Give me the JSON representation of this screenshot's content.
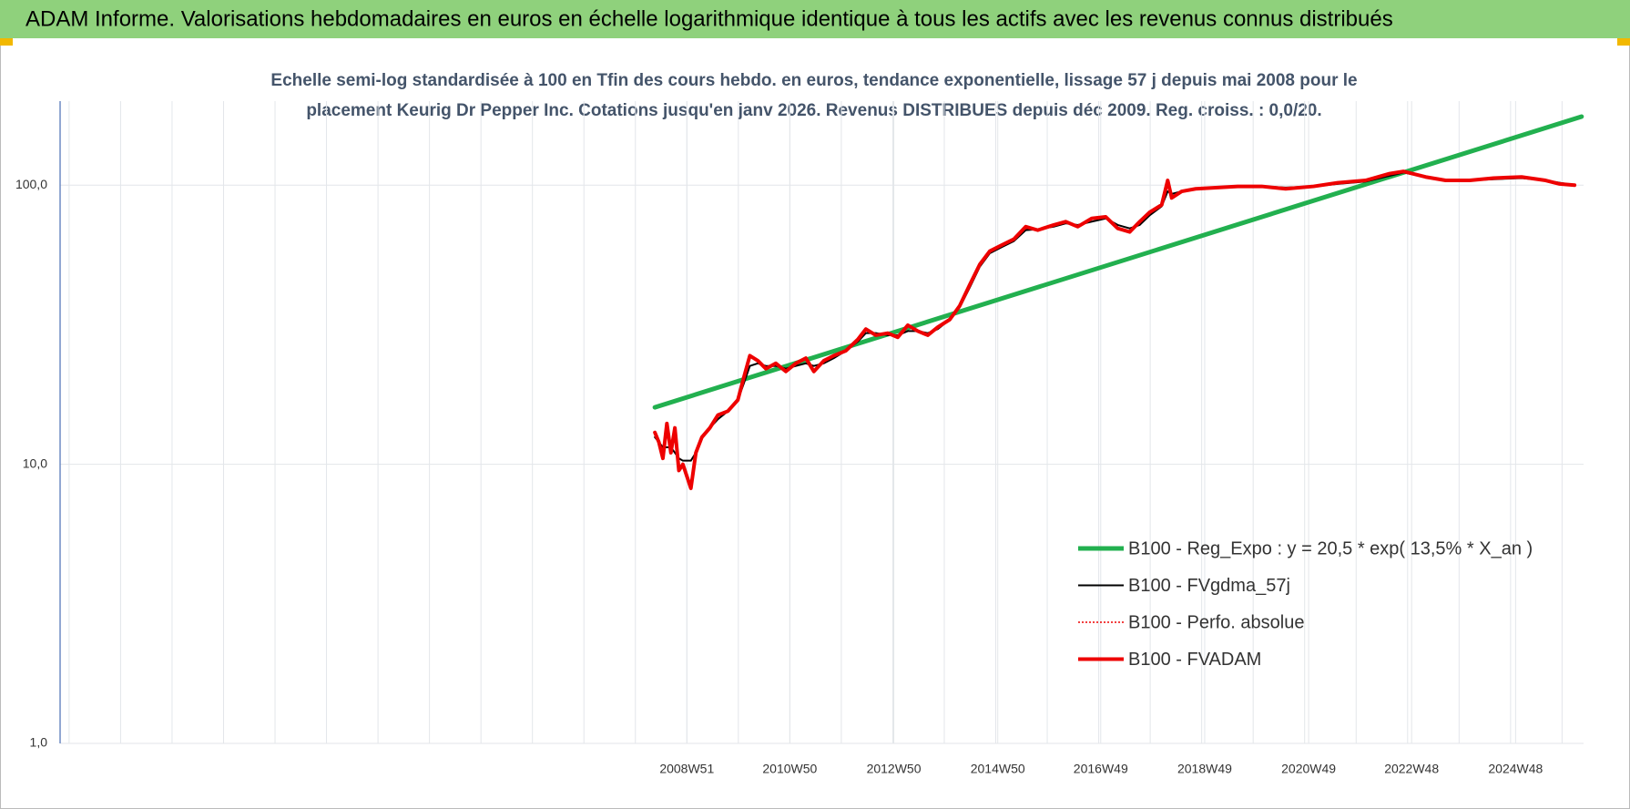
{
  "chart_data": {
    "type": "line",
    "title": "ADAM Informe. Valorisations hebdomadaires en euros en échelle logarithmique identique à tous les actifs avec les revenus connus distribués",
    "subtitle": [
      "Echelle semi-log standardisée à 100 en Tfin des cours hebdo. en euros, tendance exponentielle, lissage 57 j depuis mai 2008 pour le",
      "placement Keurig Dr Pepper Inc. Cotations jusqu'en janv 2026. Revenus DISTRIBUES depuis déc 2009. Reg. croiss. : 0,0/20."
    ],
    "log_scale": true,
    "grid": true,
    "legend": "bottom-right",
    "xlim": [
      "1996W48",
      "2026W12"
    ],
    "xticks": [
      "2008W51",
      "2010W50",
      "2012W50",
      "2014W50",
      "2016W49",
      "2018W49",
      "2020W49",
      "2022W48",
      "2024W48"
    ],
    "ylim": [
      1,
      200
    ],
    "yticks": [
      {
        "value": 1,
        "label": "1,0"
      },
      {
        "value": 10,
        "label": "10,0"
      },
      {
        "value": 100,
        "label": "100,0"
      }
    ],
    "series": [
      {
        "name": "B100 - Reg_Expo : y = 20,5 * exp( 13,5% *  X_an )",
        "color": "#22b04f",
        "width": 5,
        "dash": "none",
        "x": [
          "2008W19",
          "2026W10"
        ],
        "values": [
          16.0,
          176
        ]
      },
      {
        "name": "B100 - FVgdma_57j",
        "color": "#000000",
        "width": 2,
        "dash": "none",
        "x": [
          "2008W19",
          "2008W23",
          "2008W27",
          "2008W31",
          "2008W35",
          "2008W39",
          "2008W43",
          "2008W47",
          "2009W03",
          "2009W08",
          "2009W14",
          "2009W22",
          "2009W30",
          "2009W40",
          "2009W50",
          "2010W04",
          "2010W10",
          "2010W18",
          "2010W26",
          "2010W36",
          "2010W46",
          "2011W04",
          "2011W14",
          "2011W22",
          "2011W32",
          "2011W42",
          "2012W02",
          "2012W14",
          "2012W22",
          "2012W32",
          "2012W44",
          "2013W02",
          "2013W12",
          "2013W22",
          "2013W32",
          "2013W42",
          "2014W02",
          "2014W12",
          "2014W22",
          "2014W32",
          "2014W42",
          "2015W02",
          "2015W14",
          "2015W26",
          "2015W38",
          "2016W02",
          "2016W14",
          "2016W26",
          "2016W40",
          "2017W02",
          "2017W14",
          "2017W26",
          "2017W36",
          "2017W46",
          "2018W06",
          "2018W12",
          "2018W16",
          "2018W26",
          "2018W40",
          "2019W10",
          "2019W30",
          "2020W02",
          "2020W26",
          "2021W02",
          "2021W26",
          "2022W02",
          "2022W26",
          "2022W40",
          "2023W10",
          "2023W30",
          "2024W02",
          "2024W26",
          "2025W02",
          "2025W26",
          "2025W40",
          "2026W03"
        ],
        "values": [
          12.5,
          12,
          11.5,
          11.5,
          11.5,
          11,
          10.5,
          10.3,
          10.3,
          11,
          12.5,
          13.5,
          14.5,
          15.5,
          17,
          19.5,
          22.5,
          23,
          22.5,
          22.5,
          22,
          22.5,
          23,
          22.5,
          23,
          24,
          25.5,
          27.5,
          29.5,
          29.5,
          29,
          29,
          30,
          30,
          29.5,
          30.5,
          33,
          36.5,
          43,
          51,
          57,
          60,
          63,
          69,
          69.5,
          71,
          73,
          72,
          74,
          76,
          72,
          70,
          72,
          78,
          84,
          95,
          93,
          95,
          97,
          98,
          99,
          99,
          98,
          99,
          101,
          103,
          108,
          111,
          107,
          104,
          104,
          105,
          106,
          104,
          102,
          100
        ]
      },
      {
        "name": "B100 - Perfo. absolue",
        "color": "#ee0000",
        "width": 1.5,
        "dash": "2 2",
        "x": [
          "2008W19",
          "2008W23",
          "2008W27",
          "2008W31",
          "2008W35",
          "2008W39",
          "2008W43",
          "2008W47",
          "2009W03",
          "2009W08",
          "2009W14",
          "2009W22",
          "2009W30",
          "2009W40",
          "2009W50",
          "2010W04",
          "2010W10",
          "2010W18",
          "2010W26",
          "2010W36",
          "2010W46",
          "2011W04",
          "2011W14",
          "2011W22",
          "2011W32",
          "2011W42",
          "2012W02",
          "2012W14",
          "2012W22",
          "2012W32",
          "2012W44",
          "2013W02",
          "2013W12",
          "2013W22",
          "2013W32",
          "2013W42",
          "2014W02",
          "2014W12",
          "2014W22",
          "2014W32",
          "2014W42",
          "2015W02",
          "2015W14",
          "2015W26",
          "2015W38",
          "2016W02",
          "2016W14",
          "2016W26",
          "2016W40",
          "2017W02",
          "2017W14",
          "2017W26",
          "2017W36",
          "2017W46",
          "2018W06",
          "2018W12",
          "2018W16",
          "2018W26",
          "2018W40",
          "2019W10",
          "2019W30",
          "2020W02",
          "2020W26",
          "2021W02",
          "2021W26",
          "2022W02",
          "2022W26",
          "2022W40",
          "2023W10",
          "2023W30",
          "2024W02",
          "2024W26",
          "2025W02",
          "2025W26",
          "2025W40",
          "2026W03"
        ],
        "values": [
          13.0,
          12.0,
          10.5,
          14.0,
          11.0,
          13.5,
          9.5,
          10.0,
          8.2,
          11.0,
          12.5,
          13.5,
          15.0,
          15.5,
          17.0,
          20.5,
          24.5,
          23.5,
          22.0,
          23.0,
          21.5,
          23.0,
          24.0,
          21.5,
          23.5,
          24.5,
          25.5,
          28.0,
          30.5,
          29.0,
          29.5,
          28.5,
          31.5,
          30.0,
          29.0,
          31.0,
          33.0,
          37.0,
          44.0,
          52.0,
          58.0,
          61.0,
          64.0,
          71.0,
          69.0,
          72.0,
          74.0,
          71.0,
          76.0,
          77.0,
          70.0,
          68.0,
          74.0,
          80.0,
          85.0,
          104,
          90,
          95,
          97,
          98,
          99,
          99,
          97,
          99,
          102,
          104,
          110,
          112,
          107,
          104,
          104,
          106,
          107,
          104,
          101,
          100
        ]
      },
      {
        "name": "B100 - FVADAM",
        "color": "#ee0000",
        "width": 4,
        "dash": "none",
        "x": [
          "2008W19",
          "2008W23",
          "2008W27",
          "2008W31",
          "2008W35",
          "2008W39",
          "2008W43",
          "2008W47",
          "2009W03",
          "2009W08",
          "2009W14",
          "2009W22",
          "2009W30",
          "2009W40",
          "2009W50",
          "2010W04",
          "2010W10",
          "2010W18",
          "2010W26",
          "2010W36",
          "2010W46",
          "2011W04",
          "2011W14",
          "2011W22",
          "2011W32",
          "2011W42",
          "2012W02",
          "2012W14",
          "2012W22",
          "2012W32",
          "2012W44",
          "2013W02",
          "2013W12",
          "2013W22",
          "2013W32",
          "2013W42",
          "2014W02",
          "2014W12",
          "2014W22",
          "2014W32",
          "2014W42",
          "2015W02",
          "2015W14",
          "2015W26",
          "2015W38",
          "2016W02",
          "2016W14",
          "2016W26",
          "2016W40",
          "2017W02",
          "2017W14",
          "2017W26",
          "2017W36",
          "2017W46",
          "2018W06",
          "2018W12",
          "2018W16",
          "2018W26",
          "2018W40",
          "2019W10",
          "2019W30",
          "2020W02",
          "2020W26",
          "2021W02",
          "2021W26",
          "2022W02",
          "2022W26",
          "2022W40",
          "2023W10",
          "2023W30",
          "2024W02",
          "2024W26",
          "2025W02",
          "2025W26",
          "2025W40",
          "2026W03"
        ],
        "values": [
          13.0,
          12.0,
          10.5,
          14.0,
          11.0,
          13.5,
          9.5,
          10.0,
          8.2,
          11.0,
          12.5,
          13.5,
          15.0,
          15.5,
          17.0,
          20.5,
          24.5,
          23.5,
          22.0,
          23.0,
          21.5,
          23.0,
          24.0,
          21.5,
          23.5,
          24.5,
          25.5,
          28.0,
          30.5,
          29.0,
          29.5,
          28.5,
          31.5,
          30.0,
          29.0,
          31.0,
          33.0,
          37.0,
          44.0,
          52.0,
          58.0,
          61.0,
          64.0,
          71.0,
          69.0,
          72.0,
          74.0,
          71.0,
          76.0,
          77.0,
          70.0,
          68.0,
          74.0,
          80.0,
          85.0,
          104,
          90,
          95,
          97,
          98,
          99,
          99,
          97,
          99,
          102,
          104,
          110,
          112,
          107,
          104,
          104,
          106,
          107,
          104,
          101,
          100
        ]
      }
    ]
  }
}
